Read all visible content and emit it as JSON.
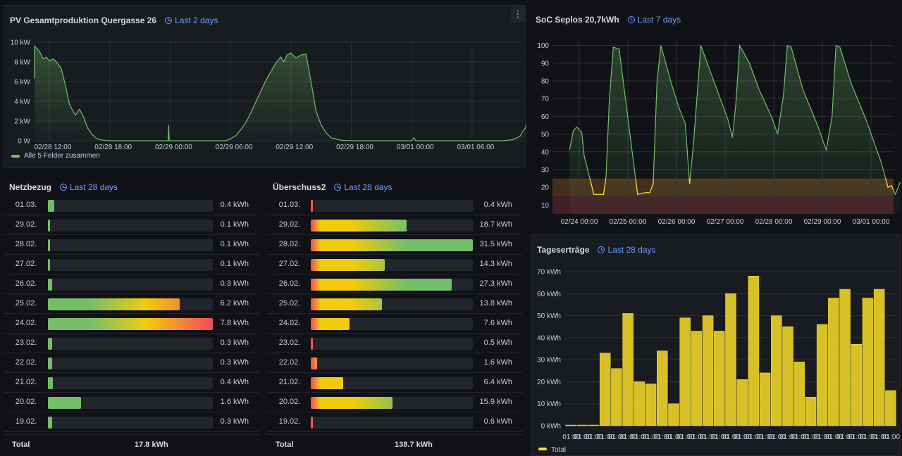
{
  "pv": {
    "title": "PV Gesamtproduktion Quergasse 26",
    "range": "Last 2 days",
    "menu_icon": "⋮",
    "legend": "Alle 5 Felder zusammen",
    "color": "#73bf69",
    "chart_data": {
      "type": "area",
      "y_ticks": [
        "10 kW",
        "8 kW",
        "6 kW",
        "4 kW",
        "2 kW",
        "0 W"
      ],
      "x_ticks": [
        "02/28 12:00",
        "02/28 18:00",
        "02/29 00:00",
        "02/29 06:00",
        "02/29 12:00",
        "02/29 18:00",
        "03/01 00:00",
        "03/01 06:00"
      ],
      "ylim": [
        0,
        10
      ],
      "x_hours": [
        -2.2,
        -2,
        -1.8,
        -1.5,
        -1,
        -0.6,
        -0.3,
        0,
        0.4,
        0.8,
        1.2,
        1.6,
        2,
        2.3,
        2.6,
        3,
        3.4,
        3.8,
        4.2,
        4.6,
        5,
        5.5,
        6,
        7,
        8,
        9,
        10,
        11,
        11.8,
        11.85,
        11.9,
        12.5,
        14,
        15,
        16,
        17,
        17.5,
        18,
        18.5,
        19,
        19.5,
        20,
        20.5,
        21,
        21.5,
        22,
        22.5,
        23,
        23.3,
        23.6,
        24,
        24.5,
        25,
        25.5,
        26,
        26.5,
        27,
        27.5,
        28,
        29,
        30,
        31,
        32,
        33,
        34,
        35,
        36,
        36.2,
        36.4,
        37,
        38,
        39,
        40,
        41,
        42,
        43,
        44,
        45,
        46,
        46.5,
        46.8,
        47,
        47.3,
        47.5,
        47.8,
        48,
        48.3,
        48.6
      ],
      "values": [
        6.3,
        7.1,
        8.6,
        9.6,
        9.1,
        8.3,
        8.5,
        8.1,
        8.3,
        7.9,
        7.3,
        5.6,
        3.7,
        3.1,
        2.6,
        3.2,
        2.4,
        1.3,
        0.7,
        0.3,
        0.1,
        0.05,
        0,
        0,
        0,
        0,
        0,
        0,
        0,
        1.6,
        0,
        0,
        0,
        0,
        0,
        0,
        0,
        0.2,
        0.5,
        1.1,
        1.8,
        2.8,
        3.9,
        5.0,
        6.1,
        7.0,
        7.9,
        8.5,
        8.0,
        8.7,
        8.9,
        8.4,
        8.7,
        8.8,
        6.0,
        3.0,
        1.6,
        0.8,
        0.3,
        0.05,
        0,
        0,
        0,
        0,
        0,
        0,
        0,
        0.3,
        0,
        0,
        0,
        0,
        0,
        0,
        0,
        0,
        0,
        0,
        0.1,
        0.3,
        0.5,
        0.9,
        1.3,
        1.9,
        1.8,
        2.3,
        2.4,
        2.2
      ]
    }
  },
  "soc": {
    "title": "SoC Seplos 20,7kWh",
    "range": "Last 7 days",
    "color": "#73bf69",
    "low_color": "#fade2a",
    "chart_data": {
      "type": "line",
      "y_ticks": [
        "100",
        "90",
        "80",
        "70",
        "60",
        "50",
        "40",
        "30",
        "20",
        "10"
      ],
      "x_ticks": [
        "02/24 00:00",
        "02/25 00:00",
        "02/26 00:00",
        "02/27 00:00",
        "02/28 00:00",
        "02/29 00:00",
        "03/01 00:00"
      ],
      "ylim": [
        5,
        103
      ],
      "thresholds": [
        {
          "from": 5,
          "to": 15,
          "color": "#f2495c"
        },
        {
          "from": 15,
          "to": 25,
          "color": "#ff9830"
        }
      ],
      "x_days": [
        -0.2,
        -0.12,
        -0.05,
        0.05,
        0.1,
        0.3,
        0.5,
        0.55,
        0.62,
        0.7,
        0.82,
        1.2,
        1.35,
        1.45,
        1.52,
        1.6,
        1.68,
        1.9,
        2.05,
        2.18,
        2.27,
        2.35,
        2.5,
        2.7,
        2.9,
        3.05,
        3.15,
        3.22,
        3.3,
        3.5,
        3.7,
        3.95,
        4.08,
        4.2,
        4.28,
        4.36,
        4.6,
        4.9,
        5.08,
        5.2,
        5.28,
        5.36,
        5.6,
        5.9,
        6.08,
        6.2,
        6.3,
        6.35,
        6.42,
        6.5,
        6.6
      ],
      "values": [
        41,
        52,
        54,
        51,
        38,
        16,
        16,
        26,
        70,
        99,
        98,
        16,
        17,
        17,
        22,
        80,
        100,
        78,
        65,
        56,
        22,
        45,
        100,
        85,
        70,
        59,
        48,
        67,
        100,
        90,
        75,
        60,
        50,
        72,
        100,
        99,
        75,
        55,
        41,
        60,
        100,
        99,
        78,
        58,
        44,
        35,
        25,
        20,
        21,
        16,
        23
      ]
    }
  },
  "netzbezug": {
    "title": "Netzbezug",
    "range": "Last 28 days",
    "rows": [
      {
        "date": "01.03.",
        "value": "0.4 kWh",
        "fraction": 0.04
      },
      {
        "date": "29.02.",
        "value": "0.1 kWh",
        "fraction": 0.006
      },
      {
        "date": "28.02.",
        "value": "0.1 kWh",
        "fraction": 0.006
      },
      {
        "date": "27.02.",
        "value": "0.1 kWh",
        "fraction": 0.01
      },
      {
        "date": "26.02.",
        "value": "0.3 kWh",
        "fraction": 0.027
      },
      {
        "date": "25.02.",
        "value": "6.2 kWh",
        "fraction": 0.8
      },
      {
        "date": "24.02.",
        "value": "7.8 kWh",
        "fraction": 1.0
      },
      {
        "date": "23.02.",
        "value": "0.3 kWh",
        "fraction": 0.027
      },
      {
        "date": "22.02.",
        "value": "0.3 kWh",
        "fraction": 0.027
      },
      {
        "date": "21.02.",
        "value": "0.4 kWh",
        "fraction": 0.032
      },
      {
        "date": "20.02.",
        "value": "1.6 kWh",
        "fraction": 0.2
      },
      {
        "date": "19.02.",
        "value": "0.3 kWh",
        "fraction": 0.027
      }
    ],
    "total_label": "Total",
    "total_value": "17.8 kWh"
  },
  "ueberschuss": {
    "title": "Überschuss2",
    "range": "Last 28 days",
    "rows": [
      {
        "date": "01.03.",
        "value": "0.4 kWh",
        "fraction": 0.006
      },
      {
        "date": "29.02.",
        "value": "18.7 kWh",
        "fraction": 0.59
      },
      {
        "date": "28.02.",
        "value": "31.5 kWh",
        "fraction": 1.0
      },
      {
        "date": "27.02.",
        "value": "14.3 kWh",
        "fraction": 0.455
      },
      {
        "date": "26.02.",
        "value": "27.3 kWh",
        "fraction": 0.87
      },
      {
        "date": "25.02.",
        "value": "13.8 kWh",
        "fraction": 0.44
      },
      {
        "date": "24.02.",
        "value": "7.6 kWh",
        "fraction": 0.24
      },
      {
        "date": "23.02.",
        "value": "0.5 kWh",
        "fraction": 0.006
      },
      {
        "date": "22.02.",
        "value": "1.6 kWh",
        "fraction": 0.04
      },
      {
        "date": "21.02.",
        "value": "6.4 kWh",
        "fraction": 0.2
      },
      {
        "date": "20.02.",
        "value": "15.9 kWh",
        "fraction": 0.505
      },
      {
        "date": "19.02.",
        "value": "0.6 kWh",
        "fraction": 0.006
      }
    ],
    "total_label": "Total",
    "total_value": "138.7 kWh"
  },
  "tages": {
    "title": "Tageserträge",
    "range": "Last 28 days",
    "legend": "Total",
    "color": "#fade2a",
    "chart_data": {
      "type": "bar",
      "y_ticks": [
        "70 kWh",
        "60 kWh",
        "50 kWh",
        "40 kWh",
        "30 kWh",
        "20 kWh",
        "10 kWh",
        "0 kWh"
      ],
      "ylim": [
        0,
        70
      ],
      "x_tick_label": "01:00",
      "values": [
        0,
        0,
        0,
        33,
        26,
        51,
        20,
        19,
        34,
        10,
        49,
        43,
        50,
        43,
        60,
        21,
        68,
        24,
        50,
        45,
        29,
        13,
        46,
        58,
        62,
        37,
        58,
        62,
        16
      ]
    }
  }
}
